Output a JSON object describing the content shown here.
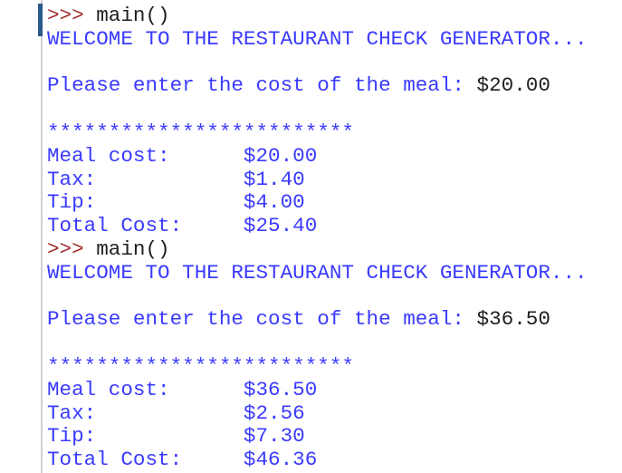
{
  "prompt_symbol": ">>>",
  "sessions": [
    {
      "command": "main()",
      "welcome": "WELCOME TO THE RESTAURANT CHECK GENERATOR...",
      "input_prompt": "Please enter the cost of the meal: ",
      "input_value": "$20.00",
      "separator": "*************************",
      "rows": [
        {
          "label": "Meal cost:",
          "value": "$20.00"
        },
        {
          "label": "Tax:",
          "value": "$1.40"
        },
        {
          "label": "Tip:",
          "value": "$4.00"
        },
        {
          "label": "Total Cost:",
          "value": "$25.40"
        }
      ]
    },
    {
      "command": "main()",
      "welcome": "WELCOME TO THE RESTAURANT CHECK GENERATOR...",
      "input_prompt": "Please enter the cost of the meal: ",
      "input_value": "$36.50",
      "separator": "*************************",
      "rows": [
        {
          "label": "Meal cost:",
          "value": "$36.50"
        },
        {
          "label": "Tax:",
          "value": "$2.56"
        },
        {
          "label": "Tip:",
          "value": "$7.30"
        },
        {
          "label": "Total Cost:",
          "value": "$46.36"
        }
      ]
    }
  ],
  "colors": {
    "prompt": "#a03030",
    "output": "#3a3aff",
    "input": "#202020"
  }
}
